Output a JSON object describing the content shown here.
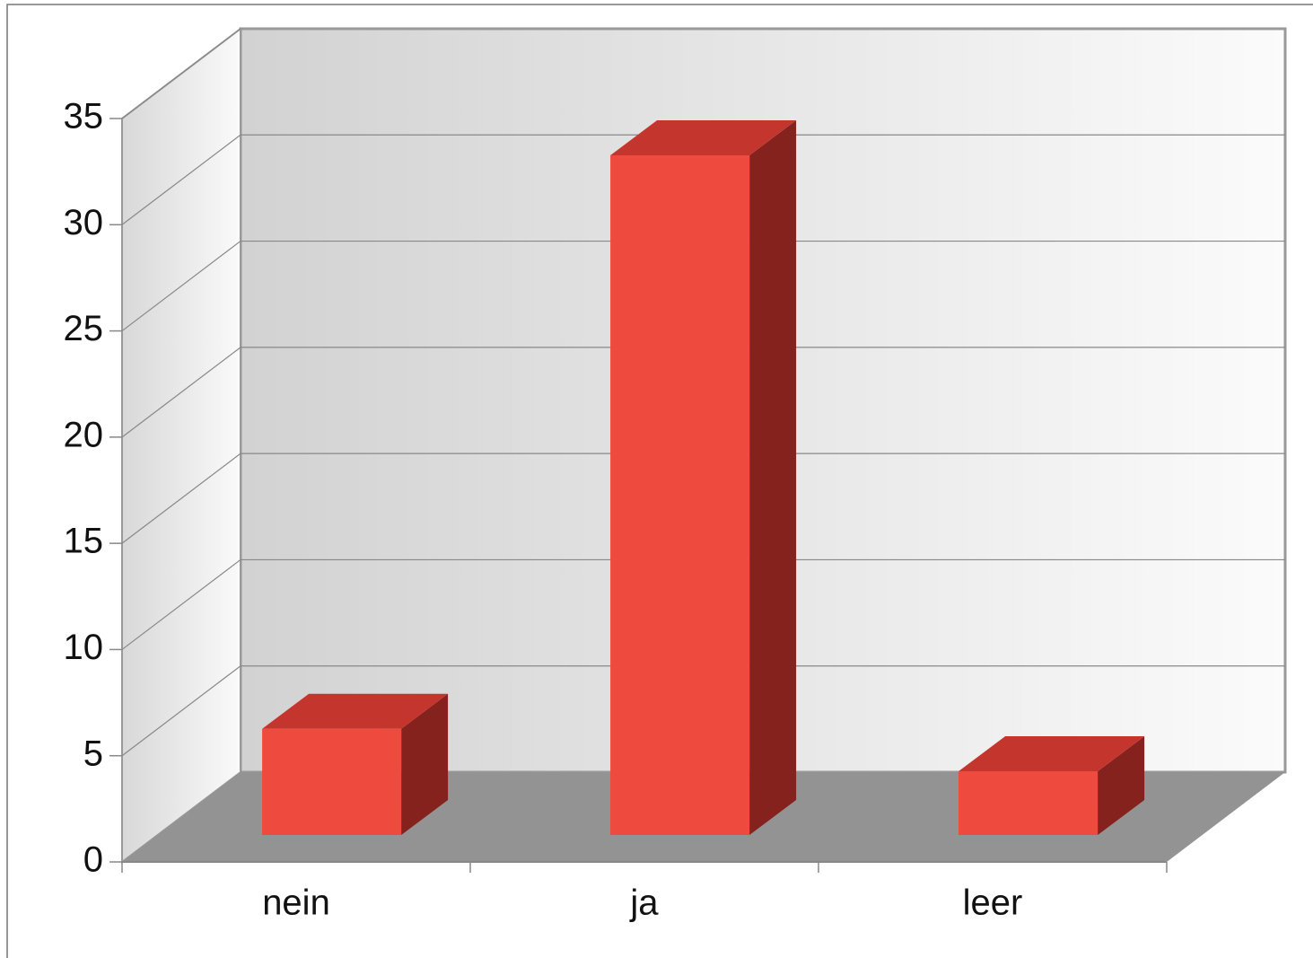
{
  "chart_data": {
    "type": "bar",
    "categories": [
      "nein",
      "ja",
      "leer"
    ],
    "values": [
      5,
      32,
      3
    ],
    "color": "#ef4a3e",
    "ylim": [
      0,
      35
    ],
    "yticks": [
      0,
      5,
      10,
      15,
      20,
      25,
      30,
      35
    ],
    "grid": true
  }
}
